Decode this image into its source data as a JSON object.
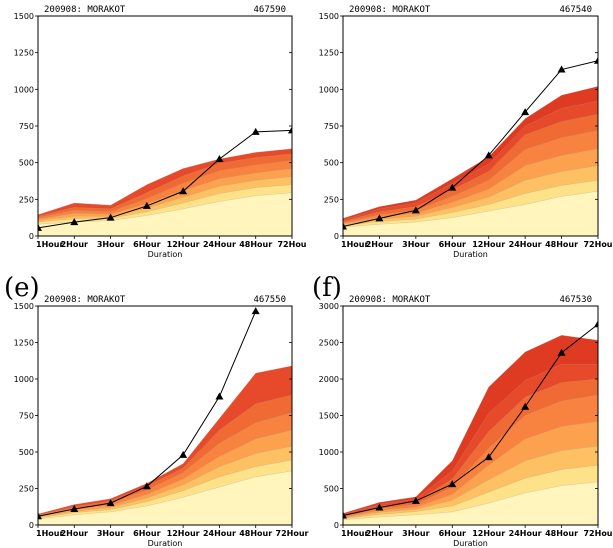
{
  "chart_data": [
    {
      "type": "area",
      "panel_label": "",
      "header_left": "200908: MORAKOT",
      "header_right": "467590",
      "x": [
        "1Hour",
        "2Hour",
        "3Hour",
        "6Hour",
        "12Hour",
        "24Hour",
        "48Hour",
        "72Hour"
      ],
      "xtick_labels": [
        "1Hour",
        "2Hour",
        "3Hour",
        "6Hour",
        "12Hour",
        "24Hour",
        "48Hour",
        "72Hou"
      ],
      "xlabel": "Duration",
      "ylim": [
        0,
        1500
      ],
      "yticks": [
        0,
        250,
        500,
        750,
        1000,
        1250,
        1500
      ],
      "bands": [
        [
          80,
          95,
          105,
          140,
          185,
          235,
          275,
          295
        ],
        [
          95,
          118,
          120,
          165,
          225,
          290,
          330,
          350
        ],
        [
          105,
          135,
          135,
          190,
          265,
          340,
          380,
          405
        ],
        [
          115,
          155,
          150,
          220,
          310,
          390,
          430,
          460
        ],
        [
          125,
          175,
          165,
          255,
          360,
          445,
          485,
          515
        ],
        [
          135,
          195,
          185,
          295,
          410,
          495,
          535,
          560
        ],
        [
          145,
          225,
          210,
          350,
          460,
          525,
          570,
          595
        ]
      ],
      "band_colors": [
        "#fff5bd",
        "#fde28a",
        "#fdc063",
        "#fca24f",
        "#f8823f",
        "#f06a34",
        "#e64a2b"
      ],
      "observed": [
        55,
        95,
        125,
        205,
        305,
        525,
        710,
        720
      ]
    },
    {
      "type": "area",
      "panel_label": "",
      "header_left": "200908: MORAKOT",
      "header_right": "467540",
      "x": [
        "1Hour",
        "2Hour",
        "3Hour",
        "6Hour",
        "12Hour",
        "24Hour",
        "48Hour",
        "72Hour"
      ],
      "xtick_labels": [
        "1Hour",
        "2Hour",
        "3Hour",
        "6Hour",
        "12Hour",
        "24Hour",
        "48Hour",
        "72Hou"
      ],
      "xlabel": "Duration",
      "ylim": [
        0,
        1500
      ],
      "yticks": [
        0,
        250,
        500,
        750,
        1000,
        1250,
        1500
      ],
      "bands": [
        [
          60,
          80,
          95,
          125,
          170,
          215,
          270,
          305
        ],
        [
          70,
          100,
          115,
          160,
          215,
          290,
          345,
          380
        ],
        [
          78,
          115,
          135,
          195,
          265,
          380,
          440,
          480
        ],
        [
          85,
          130,
          155,
          230,
          320,
          480,
          550,
          595
        ],
        [
          92,
          145,
          175,
          270,
          380,
          590,
          670,
          720
        ],
        [
          100,
          165,
          200,
          315,
          440,
          690,
          780,
          830
        ],
        [
          110,
          185,
          225,
          360,
          490,
          750,
          870,
          920
        ],
        [
          120,
          200,
          245,
          390,
          540,
          800,
          960,
          1020
        ]
      ],
      "band_colors": [
        "#fff5bd",
        "#fde28a",
        "#fdc063",
        "#fca24f",
        "#f8823f",
        "#f06a34",
        "#e64a2b",
        "#de3b22"
      ],
      "observed": [
        65,
        120,
        175,
        330,
        550,
        845,
        1135,
        1195
      ]
    },
    {
      "type": "area",
      "panel_label": "(e)",
      "header_left": "200908: MORAKOT",
      "header_right": "467550",
      "x": [
        "1Hour",
        "2Hour",
        "3Hour",
        "6Hour",
        "12Hour",
        "24Hour",
        "48Hour",
        "72Hour"
      ],
      "xtick_labels": [
        "1Hour",
        "2Hour",
        "3Hour",
        "6Hour",
        "12Hour",
        "24Hour",
        "48Hour",
        "72Hour"
      ],
      "xlabel": "Duration",
      "ylim": [
        0,
        1500
      ],
      "yticks": [
        0,
        250,
        500,
        750,
        1000,
        1250,
        1500
      ],
      "bands": [
        [
          40,
          70,
          90,
          130,
          190,
          260,
          330,
          370
        ],
        [
          48,
          85,
          105,
          160,
          235,
          330,
          400,
          445
        ],
        [
          55,
          95,
          120,
          185,
          275,
          400,
          490,
          540
        ],
        [
          60,
          105,
          135,
          210,
          315,
          470,
          590,
          650
        ],
        [
          65,
          115,
          150,
          240,
          360,
          560,
          700,
          770
        ],
        [
          70,
          125,
          165,
          265,
          390,
          650,
          830,
          890
        ],
        [
          75,
          140,
          180,
          285,
          420,
          730,
          1040,
          1090
        ]
      ],
      "band_colors": [
        "#fff5bd",
        "#fde28a",
        "#fdc063",
        "#fca24f",
        "#f8823f",
        "#f06a34",
        "#e64a2b"
      ],
      "observed": [
        60,
        110,
        150,
        265,
        480,
        880,
        1465,
        null
      ]
    },
    {
      "type": "area",
      "panel_label": "(f)",
      "header_left": "200908: MORAKOT",
      "header_right": "467530",
      "x": [
        "1Hour",
        "2Hour",
        "3Hour",
        "6Hour",
        "12Hour",
        "24Hour",
        "48Hour",
        "72Hour"
      ],
      "xtick_labels": [
        "1Hour",
        "2Hour",
        "3Hour",
        "6Hour",
        "12Hour",
        "24Hour",
        "48Hour",
        "72Hou"
      ],
      "xlabel": "Duration",
      "ylim": [
        0,
        3000
      ],
      "yticks": [
        0,
        500,
        1000,
        1500,
        2000,
        2500,
        3000
      ],
      "bands": [
        [
          70,
          110,
          140,
          180,
          300,
          440,
          540,
          590
        ],
        [
          85,
          145,
          185,
          260,
          450,
          640,
          760,
          820
        ],
        [
          95,
          175,
          215,
          340,
          620,
          880,
          1020,
          1080
        ],
        [
          105,
          200,
          245,
          420,
          820,
          1180,
          1350,
          1420
        ],
        [
          115,
          225,
          280,
          520,
          1050,
          1500,
          1700,
          1780
        ],
        [
          130,
          255,
          320,
          630,
          1280,
          1750,
          1950,
          2000
        ],
        [
          145,
          285,
          355,
          740,
          1530,
          1980,
          2200,
          2200
        ],
        [
          160,
          310,
          385,
          880,
          1890,
          2370,
          2600,
          2530
        ]
      ],
      "band_colors": [
        "#fff5bd",
        "#fde28a",
        "#fdc063",
        "#fca24f",
        "#f8823f",
        "#f06a34",
        "#e64a2b",
        "#de3b22"
      ],
      "observed": [
        130,
        240,
        330,
        560,
        930,
        1620,
        2360,
        2750
      ]
    }
  ]
}
